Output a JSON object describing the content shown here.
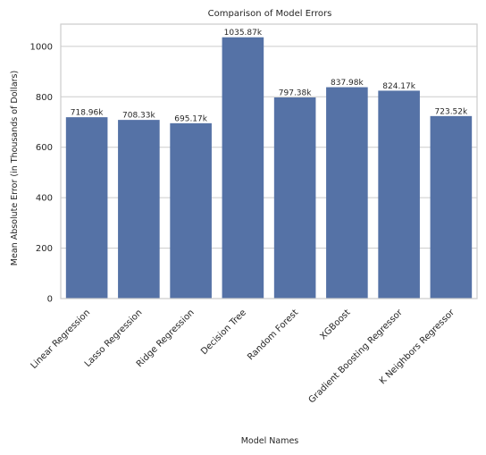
{
  "chart_data": {
    "type": "bar",
    "title": "Comparison of Model Errors",
    "xlabel": "Model Names",
    "ylabel": "Mean Absolute Error (in Thousands of Dollars)",
    "categories": [
      "Linear Regression",
      "Lasso Regression",
      "Ridge Regression",
      "Decision Tree",
      "Random Forest",
      "XGBoost",
      "Gradient Boosting Regressor",
      "K Neighbors Regressor"
    ],
    "values": [
      718.96,
      708.33,
      695.17,
      1035.87,
      797.38,
      837.98,
      824.17,
      723.52
    ],
    "data_labels": [
      "718.96k",
      "708.33k",
      "695.17k",
      "1035.87k",
      "797.38k",
      "837.98k",
      "824.17k",
      "723.52k"
    ],
    "yticks": [
      0,
      200,
      400,
      600,
      800,
      1000
    ],
    "ylim": [
      0,
      1088
    ],
    "grid": "horizontal",
    "bar_color": "#5572a6"
  }
}
